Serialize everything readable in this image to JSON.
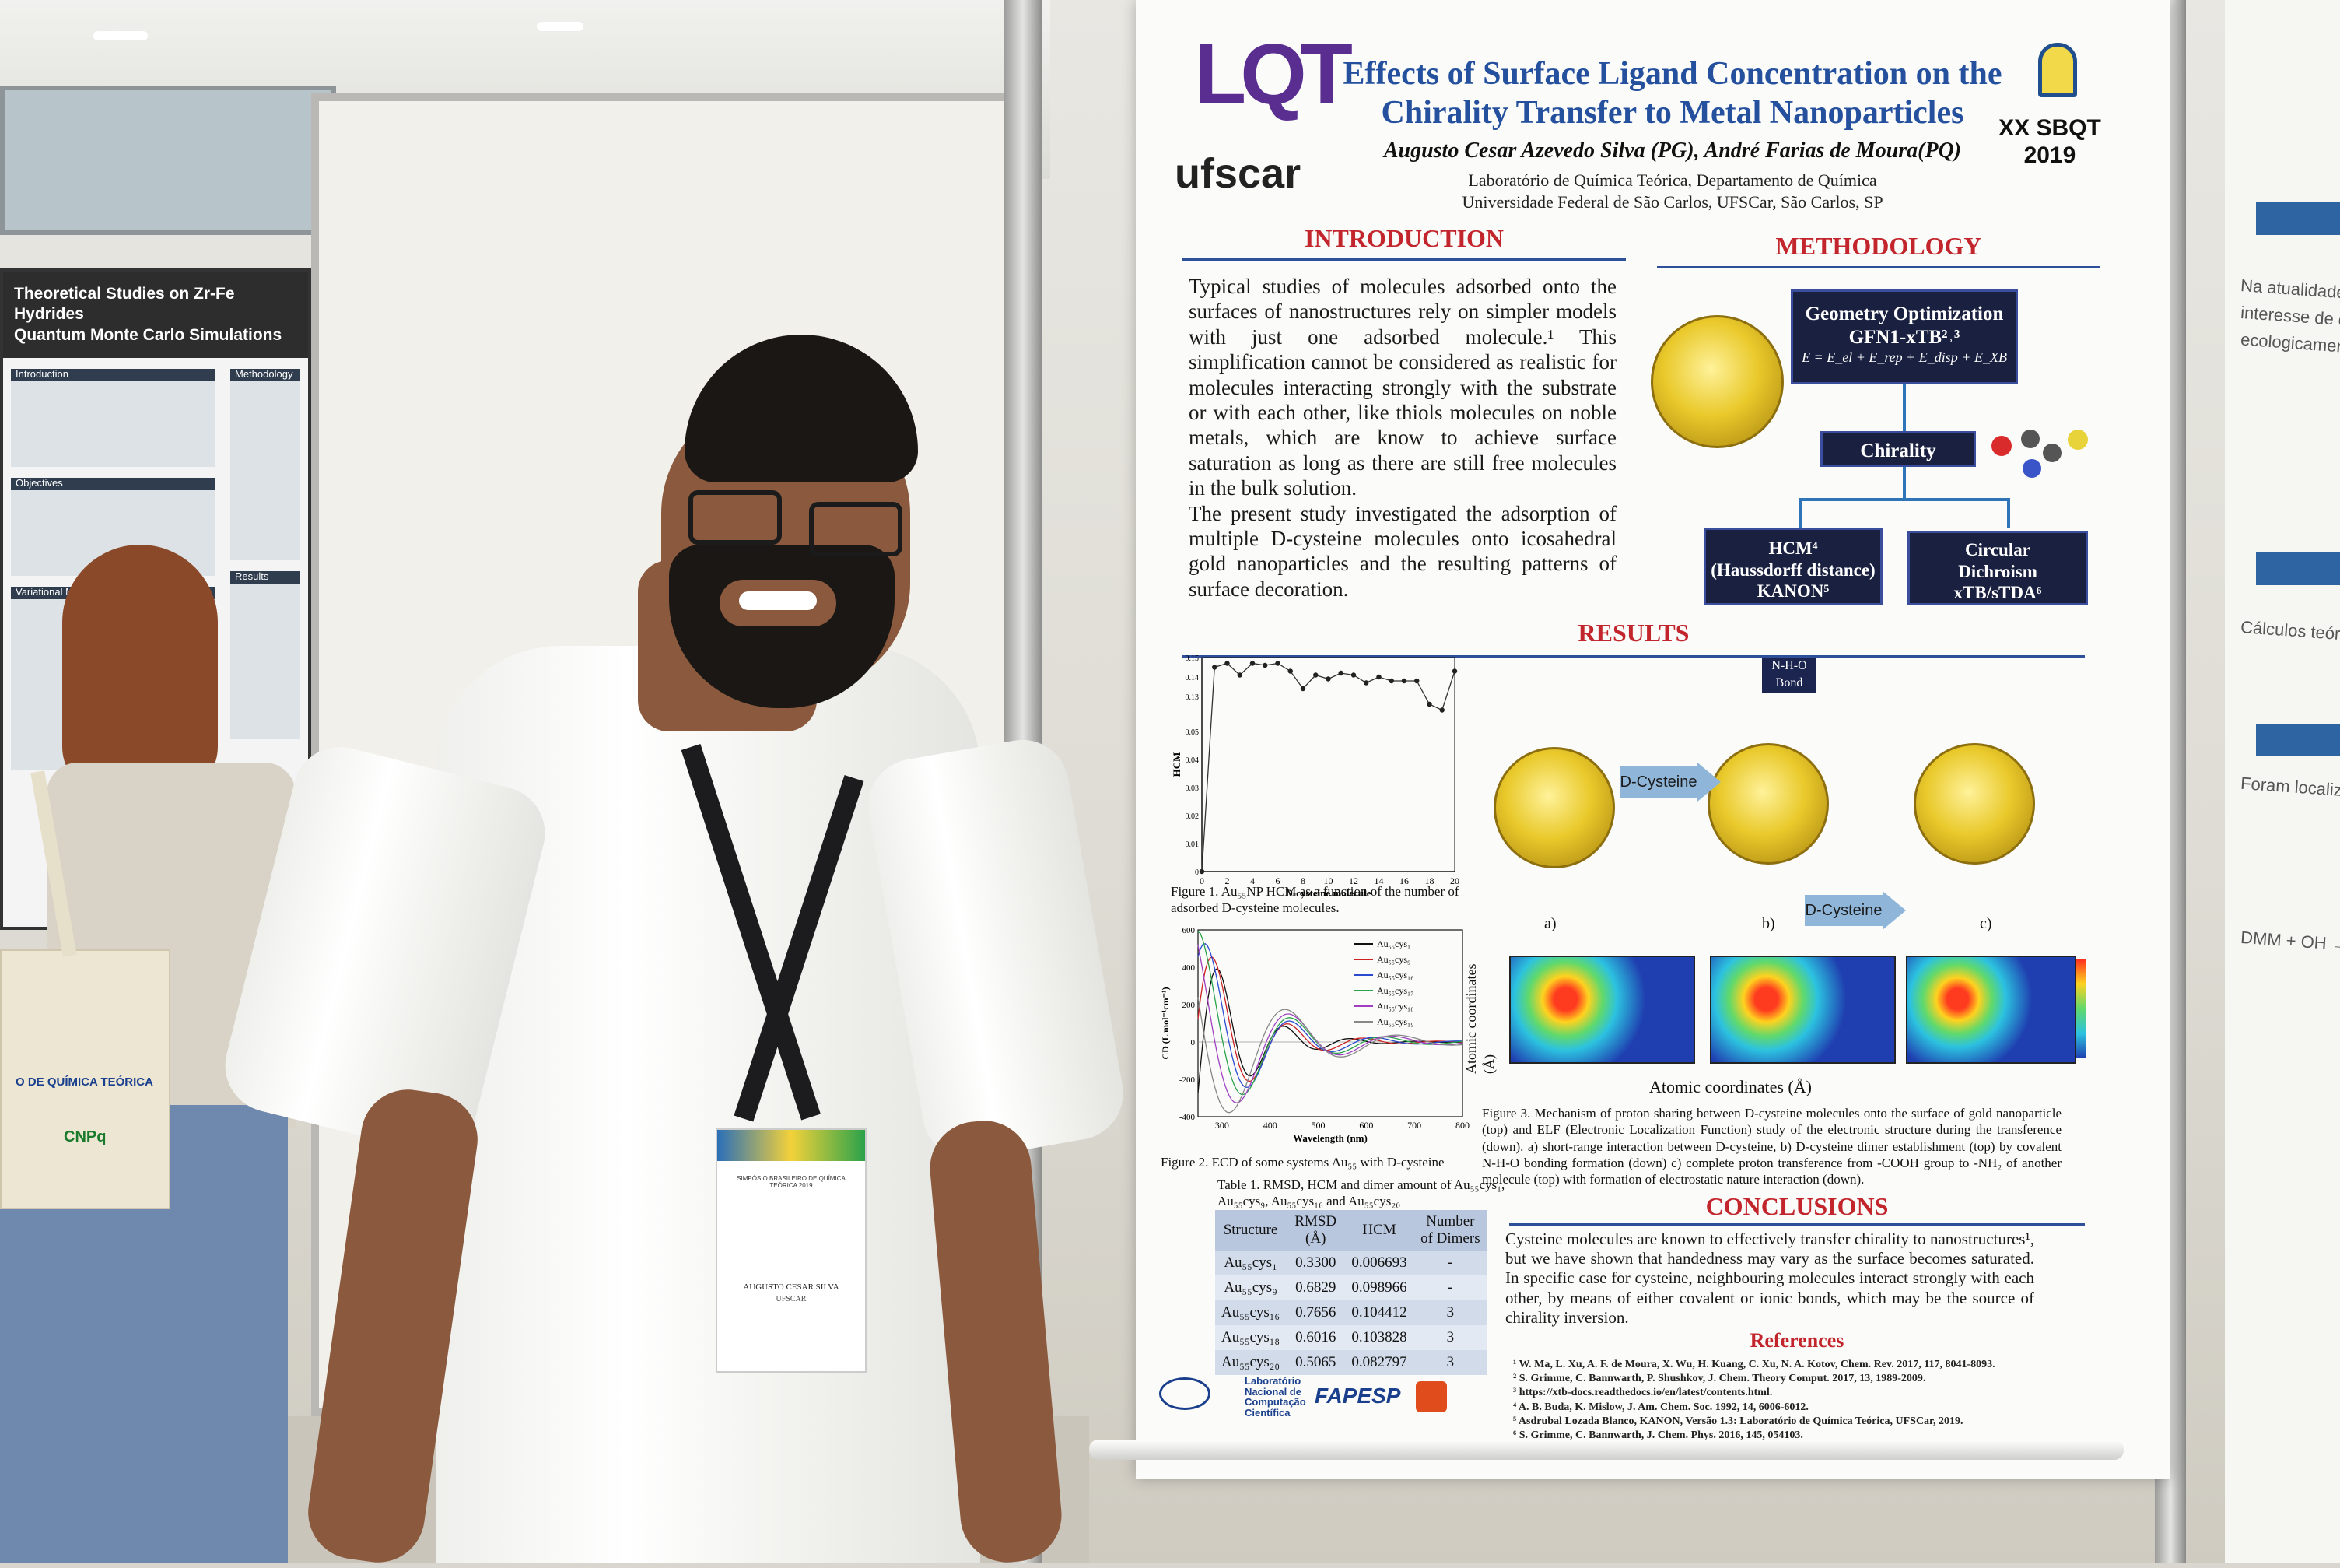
{
  "poster": {
    "title_line1": "Effects of Surface Ligand Concentration on the",
    "title_line2": "Chirality Transfer to Metal Nanoparticles",
    "authors": "Augusto Cesar Azevedo Silva (PG), André Farias de Moura(PQ)",
    "affiliation_line1": "Laboratório de Química Teórica, Departamento de Química",
    "affiliation_line2": "Universidade Federal de São Carlos, UFSCar, São Carlos, SP",
    "logo_lqt": "LQT",
    "logo_ufscar": "ufscar",
    "event_line1": "XX SBQT",
    "event_line2": "2019",
    "introduction": {
      "heading": "INTRODUCTION",
      "paragraph1": "Typical studies of molecules adsorbed onto the surfaces of nanostructures rely on simpler models with just one adsorbed molecule.¹ This simplification cannot be considered as realistic for molecules interacting strongly with the substrate or with each other, like thiols molecules on noble metals, which are know to achieve surface saturation as long as there are still free molecules in the bulk solution.",
      "paragraph2": "The present study investigated the adsorption of multiple D-cysteine molecules onto icosahedral gold nanoparticles and the resulting patterns of surface decoration."
    },
    "methodology": {
      "heading": "METHODOLOGY",
      "box_geometry_line1": "Geometry Optimization",
      "box_geometry_line2": "GFN1-xTB²˒³",
      "box_geometry_formula": "E = E_el + E_rep + E_disp + E_XB",
      "box_chirality": "Chirality",
      "box_hcm_line1": "HCM⁴",
      "box_hcm_line2": "(Haussdorff distance)",
      "box_hcm_line3": "KANON⁵",
      "box_cd_line1": "Circular",
      "box_cd_line2": "Dichroism",
      "box_cd_line3": "xTB/sTDA⁶"
    },
    "results": {
      "heading": "RESULTS",
      "figure1_caption": "Figure 1. Au₅₅NP HCM as a function of the number of adsorbed D-cysteine molecules.",
      "figure2_caption": "Figure 2. ECD of some systems Au₅₅ with D-cysteine",
      "figure3_caption": "Figure 3. Mechanism of proton sharing between D-cysteine molecules onto the surface of gold nanoparticle (top) and ELF (Electronic Localization Function) study of the electronic structure during the transference (down). a) short-range interaction between D-cysteine, b) D-cysteine dimer establishment (top) by covalent N-H-O bonding formation (down) c) complete proton transference from -COOH group to -NH₂ of another molecule (top) with formation of electrostatic nature interaction (down).",
      "nho_label_line1": "N-H-O",
      "nho_label_line2": "Bond",
      "arrow_label_top": "D-Cysteine",
      "arrow_label_bottom": "D-Cysteine",
      "panel_a": "a)",
      "panel_b": "b)",
      "panel_c": "c)",
      "elf_xlabel": "Atomic coordinates (Å)",
      "elf_ylabel": "Atomic coordinates (Å)",
      "table_caption": "Table 1. RMSD, HCM and dimer amount of Au₅₅cys₁, Au₅₅cys₉, Au₅₅cys₁₆ and Au₅₅cys₂₀",
      "table_headers": [
        "Structure",
        "RMSD (Å)",
        "HCM",
        "Number of Dimers"
      ],
      "table_rows": [
        [
          "Au₅₅cys₁",
          "0.3300",
          "0.006693",
          "-"
        ],
        [
          "Au₅₅cys₉",
          "0.6829",
          "0.098966",
          "-"
        ],
        [
          "Au₅₅cys₁₆",
          "0.7656",
          "0.104412",
          "3"
        ],
        [
          "Au₅₅cys₁₈",
          "0.6016",
          "0.103828",
          "3"
        ],
        [
          "Au₅₅cys₂₀",
          "0.5065",
          "0.082797",
          "3"
        ]
      ]
    },
    "conclusions": {
      "heading": "CONCLUSIONS",
      "text": "Cysteine molecules are known to effectively transfer chirality to nanostructures¹, but we have shown that handedness may vary as the surface becomes saturated. In specific case for cysteine, neighbouring molecules interact strongly with each other, by means of either covalent or ionic bonds, which may be the source of chirality inversion."
    },
    "references": {
      "heading": "References",
      "items": [
        "¹ W. Ma, L. Xu, A. F. de Moura, X. Wu, H. Kuang, C. Xu, N. A. Kotov, Chem. Rev. 2017, 117, 8041-8093.",
        "² S. Grimme, C. Bannwarth, P. Shushkov, J. Chem. Theory Comput. 2017, 13, 1989-2009.",
        "³ https://xtb-docs.readthedocs.io/en/latest/contents.html.",
        "⁴ A. B. Buda, K. Mislow, J. Am. Chem. Soc. 1992, 14, 6006-6012.",
        "⁵ Asdrubal Lozada Blanco, KANON, Versão 1.3: Laboratório de Química Teórica, UFSCar, 2019.",
        "⁶ S. Grimme, C. Bannwarth, J. Chem. Phys. 2016, 145, 054103."
      ]
    },
    "sponsors": {
      "lncc_line1": "Laboratório",
      "lncc_line2": "Nacional de",
      "lncc_line3": "Computação",
      "lncc_line4": "Científica",
      "fapesp": "FAPESP"
    },
    "hcm_chart": {
      "type": "line",
      "x": [
        0,
        1,
        2,
        3,
        4,
        5,
        6,
        7,
        8,
        9,
        10,
        11,
        12,
        13,
        14,
        15,
        16,
        17,
        18,
        19,
        20
      ],
      "y": [
        0.0,
        0.145,
        0.147,
        0.141,
        0.147,
        0.146,
        0.147,
        0.143,
        0.134,
        0.141,
        0.139,
        0.142,
        0.141,
        0.137,
        0.14,
        0.138,
        0.138,
        0.138,
        0.126,
        0.123,
        0.143
      ],
      "xlabel": "D-cysteine molecule",
      "ylabel": "HCM",
      "xticks": [
        "0",
        "2",
        "4",
        "6",
        "8",
        "10",
        "12",
        "14",
        "16",
        "18",
        "20"
      ],
      "yticks": [
        "0",
        "0.01",
        "0.02",
        "0.03",
        "0.04",
        "0.05",
        "0.13",
        "0.14",
        "0.15"
      ]
    },
    "ecd_chart": {
      "type": "line",
      "xlabel": "Wavelength (nm)",
      "ylabel": "CD (L mol⁻¹cm⁻¹)",
      "xticks": [
        "300",
        "400",
        "500",
        "600",
        "700",
        "800"
      ],
      "yticks": [
        "600",
        "400",
        "200",
        "0",
        "-200",
        "-400"
      ],
      "legend": [
        "Au₅₅cys₁",
        "Au₅₅cys₉",
        "Au₅₅cys₁₆",
        "Au₅₅cys₁₇",
        "Au₅₅cys₁₈",
        "Au₅₅cys₁₉"
      ],
      "colors": [
        "#111111",
        "#cc2222",
        "#2a4bd0",
        "#2aa24a",
        "#a040c0",
        "#888888"
      ]
    }
  },
  "badge": {
    "event": "SIMPÓSIO BRASILEIRO DE QUÍMICA TEÓRICA 2019",
    "name": "AUGUSTO CESAR SILVA",
    "org": "UFSCAR"
  },
  "left_poster": {
    "title_line1": "Theoretical Studies on Zr-Fe Hydrides",
    "title_line2": "Quantum Monte Carlo Simulations",
    "sec_intro": "Introduction",
    "sec_objectives": "Objectives",
    "sec_variational": "Variational Monte C...",
    "sec_methodology": "Methodology",
    "sec_results": "Results"
  },
  "tote": {
    "text_line1": "O DE QUÍMICA TEÓRICA",
    "brand": "CNPq"
  }
}
